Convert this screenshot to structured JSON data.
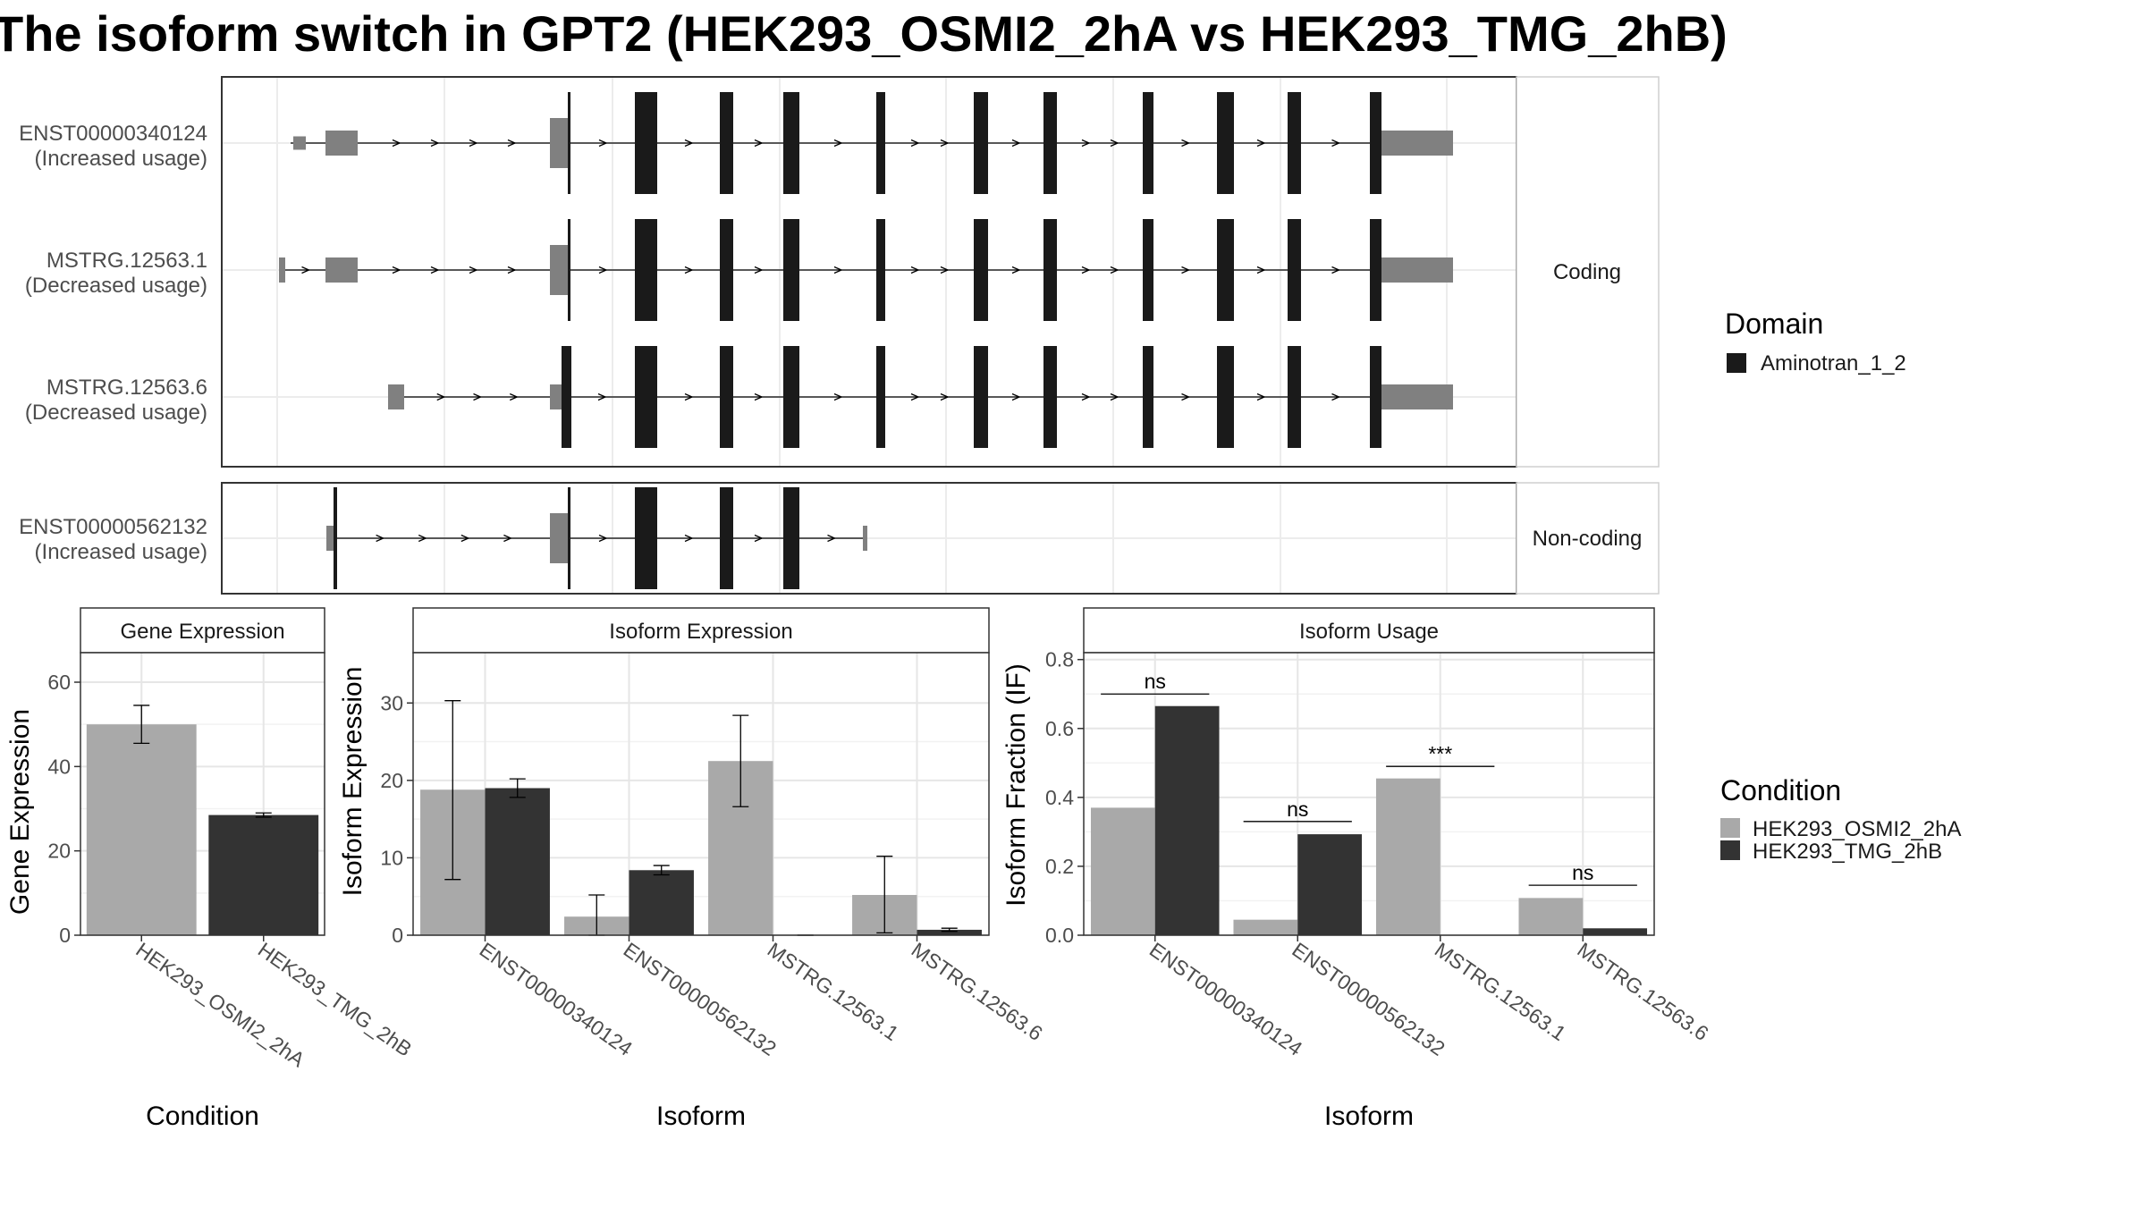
{
  "title": "The isoform switch in GPT2 (HEK293_OSMI2_2hA vs HEK293_TMG_2hB)",
  "structure": {
    "facets": [
      "Coding",
      "Non-coding"
    ],
    "transcripts": [
      {
        "id": "ENST00000340124",
        "usage": "(Increased usage)",
        "facet": "Coding"
      },
      {
        "id": "MSTRG.12563.1",
        "usage": "(Decreased usage)",
        "facet": "Coding"
      },
      {
        "id": "MSTRG.12563.6",
        "usage": "(Decreased usage)",
        "facet": "Coding"
      },
      {
        "id": "ENST00000562132",
        "usage": "(Increased usage)",
        "facet": "Non-coding"
      }
    ]
  },
  "domain_legend": {
    "title": "Domain",
    "items": [
      {
        "label": "Aminotran_1_2",
        "color": "#1a1a1a"
      }
    ]
  },
  "condition_legend": {
    "title": "Condition",
    "items": [
      {
        "label": "HEK293_OSMI2_2hA",
        "color": "#a9a9a9"
      },
      {
        "label": "HEK293_TMG_2hB",
        "color": "#333333"
      }
    ]
  },
  "colors": {
    "utr": "#808080",
    "domain": "#1a1a1a",
    "condA": "#a9a9a9",
    "condB": "#333333"
  },
  "chart_data": [
    {
      "type": "bar",
      "title": "Gene Expression",
      "xlabel": "Condition",
      "ylabel": "Gene Expression",
      "ylim": [
        0,
        67
      ],
      "yticks": [
        0,
        20,
        40,
        60
      ],
      "categories": [
        "HEK293_OSMI2_2hA",
        "HEK293_TMG_2hB"
      ],
      "values": [
        50,
        28.5
      ],
      "error": [
        [
          45.5,
          54.5
        ],
        [
          28,
          29
        ]
      ]
    },
    {
      "type": "bar",
      "title": "Isoform Expression",
      "xlabel": "Isoform",
      "ylabel": "Isoform Expression",
      "ylim": [
        0,
        36.5
      ],
      "yticks": [
        0,
        10,
        20,
        30
      ],
      "categories": [
        "ENST00000340124",
        "ENST00000562132",
        "MSTRG.12563.1",
        "MSTRG.12563.6"
      ],
      "series": [
        {
          "name": "HEK293_OSMI2_2hA",
          "values": [
            18.8,
            2.4,
            22.5,
            5.2
          ],
          "error": [
            [
              7.2,
              30.3
            ],
            [
              0,
              5.2
            ],
            [
              16.6,
              28.4
            ],
            [
              0.3,
              10.2
            ]
          ]
        },
        {
          "name": "HEK293_TMG_2hB",
          "values": [
            19,
            8.4,
            0,
            0.7
          ],
          "error": [
            [
              17.8,
              20.2
            ],
            [
              7.8,
              9.0
            ],
            [
              0,
              0
            ],
            [
              0.5,
              0.9
            ]
          ]
        }
      ]
    },
    {
      "type": "bar",
      "title": "Isoform Usage",
      "xlabel": "Isoform",
      "ylabel": "Isoform Fraction (IF)",
      "ylim": [
        0,
        0.82
      ],
      "yticks": [
        0.0,
        0.2,
        0.4,
        0.6,
        0.8
      ],
      "categories": [
        "ENST00000340124",
        "ENST00000562132",
        "MSTRG.12563.1",
        "MSTRG.12563.6"
      ],
      "series": [
        {
          "name": "HEK293_OSMI2_2hA",
          "values": [
            0.37,
            0.045,
            0.455,
            0.108
          ]
        },
        {
          "name": "HEK293_TMG_2hB",
          "values": [
            0.665,
            0.293,
            0,
            0.02
          ]
        }
      ],
      "significance": [
        {
          "label": "ns",
          "y": 0.7
        },
        {
          "label": "ns",
          "y": 0.33
        },
        {
          "label": "***",
          "y": 0.49
        },
        {
          "label": "ns",
          "y": 0.145
        }
      ]
    }
  ]
}
